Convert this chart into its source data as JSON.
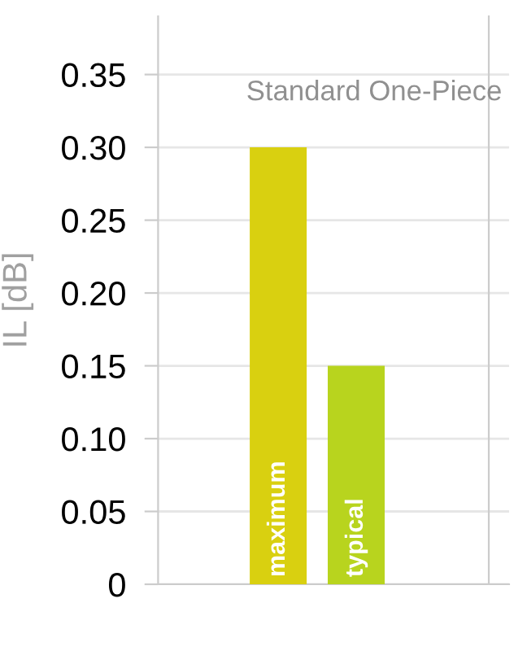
{
  "chart_data": {
    "type": "bar",
    "title": "Standard One-Piece",
    "ylabel": "IL [dB]",
    "categories": [
      "maximum",
      "typical"
    ],
    "values": [
      0.3,
      0.15
    ],
    "colors": [
      "#d9d010",
      "#b8d41e"
    ],
    "ylim": [
      0,
      0.39
    ],
    "yticks": [
      {
        "value": 0,
        "label": "0"
      },
      0.05,
      {
        "value": 0.1,
        "label": "0.10"
      },
      0.15,
      {
        "value": 0.2,
        "label": "0.20"
      },
      0.25,
      {
        "value": 0.3,
        "label": "0.30"
      },
      0.35
    ],
    "grid": "y"
  }
}
